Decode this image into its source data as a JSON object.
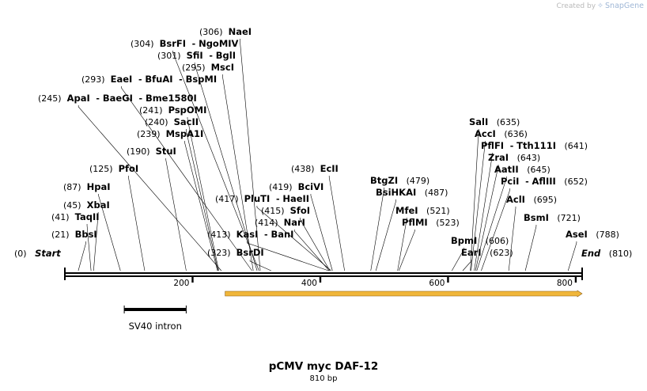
{
  "watermark": {
    "prefix": "Created by",
    "brand": "SnapGene"
  },
  "sequence": {
    "name": "pCMV myc DAF-12",
    "length_label": "810 bp",
    "length": 810
  },
  "ends": [
    {
      "id": "start",
      "label": "Start",
      "pos": 0
    },
    {
      "id": "end",
      "label": "End",
      "pos": 810
    }
  ],
  "ruler": {
    "ticks": [
      200,
      400,
      600,
      800
    ]
  },
  "features": [
    {
      "id": "sv40-intron",
      "label": "SV40 intron",
      "start": 93,
      "end": 190,
      "strand": "none",
      "color": "#000000"
    },
    {
      "id": "orf",
      "label": "",
      "start": 251,
      "end": 810,
      "strand": "forward",
      "color": "#f0b63a"
    }
  ],
  "sites": [
    {
      "id": "bbsi",
      "names": [
        "BbsI"
      ],
      "pos": 21
    },
    {
      "id": "taqii",
      "names": [
        "TaqII"
      ],
      "pos": 41
    },
    {
      "id": "xbai",
      "names": [
        "XbaI"
      ],
      "pos": 45
    },
    {
      "id": "hpai",
      "names": [
        "HpaI"
      ],
      "pos": 87
    },
    {
      "id": "pfoi",
      "names": [
        "PfoI"
      ],
      "pos": 125
    },
    {
      "id": "stui",
      "names": [
        "StuI"
      ],
      "pos": 190
    },
    {
      "id": "mspa1i",
      "names": [
        "MspA1I"
      ],
      "pos": 239
    },
    {
      "id": "sacii",
      "names": [
        "SacII"
      ],
      "pos": 240
    },
    {
      "id": "pspomi",
      "names": [
        "PspOMI"
      ],
      "pos": 241
    },
    {
      "id": "apai",
      "names": [
        "ApaI",
        "BaeGI",
        "Bme1580I"
      ],
      "pos": 245
    },
    {
      "id": "eaei",
      "names": [
        "EaeI",
        "BfuAI",
        "BspMI"
      ],
      "pos": 293
    },
    {
      "id": "msci",
      "names": [
        "MscI"
      ],
      "pos": 295
    },
    {
      "id": "sfii",
      "names": [
        "SfiI",
        "BglI"
      ],
      "pos": 301
    },
    {
      "id": "bsrfi",
      "names": [
        "BsrFI",
        "NgoMIV"
      ],
      "pos": 304
    },
    {
      "id": "naei",
      "names": [
        "NaeI"
      ],
      "pos": 306
    },
    {
      "id": "bsrdi",
      "names": [
        "BsrDI"
      ],
      "pos": 323
    },
    {
      "id": "kasi",
      "names": [
        "KasI",
        "BanI"
      ],
      "pos": 413
    },
    {
      "id": "nari",
      "names": [
        "NarI"
      ],
      "pos": 414
    },
    {
      "id": "sfoi",
      "names": [
        "SfoI"
      ],
      "pos": 415
    },
    {
      "id": "pluti",
      "names": [
        "PluTI",
        "HaeII"
      ],
      "pos": 417
    },
    {
      "id": "bcivi",
      "names": [
        "BciVI"
      ],
      "pos": 419
    },
    {
      "id": "ecli",
      "names": [
        "EcII"
      ],
      "pos": 438
    },
    {
      "id": "btgzi",
      "names": [
        "BtgZI"
      ],
      "pos": 479
    },
    {
      "id": "bsihkai",
      "names": [
        "BsiHKAI"
      ],
      "pos": 487
    },
    {
      "id": "mfei",
      "names": [
        "MfeI"
      ],
      "pos": 521
    },
    {
      "id": "pflmi",
      "names": [
        "PflMI"
      ],
      "pos": 523
    },
    {
      "id": "bpmi",
      "names": [
        "BpmI"
      ],
      "pos": 606
    },
    {
      "id": "eari",
      "names": [
        "EarI"
      ],
      "pos": 623
    },
    {
      "id": "sali",
      "names": [
        "SalI"
      ],
      "pos": 635
    },
    {
      "id": "acci",
      "names": [
        "AccI"
      ],
      "pos": 636
    },
    {
      "id": "pflfi",
      "names": [
        "PflFI",
        "Tth111I"
      ],
      "pos": 641
    },
    {
      "id": "zrai",
      "names": [
        "ZraI"
      ],
      "pos": 643
    },
    {
      "id": "aatii",
      "names": [
        "AatII"
      ],
      "pos": 645
    },
    {
      "id": "pcii",
      "names": [
        "PciI",
        "AflIII"
      ],
      "pos": 652
    },
    {
      "id": "acli",
      "names": [
        "AclI"
      ],
      "pos": 695
    },
    {
      "id": "bsmi",
      "names": [
        "BsmI"
      ],
      "pos": 721
    },
    {
      "id": "asei",
      "names": [
        "AseI"
      ],
      "pos": 788
    }
  ]
}
